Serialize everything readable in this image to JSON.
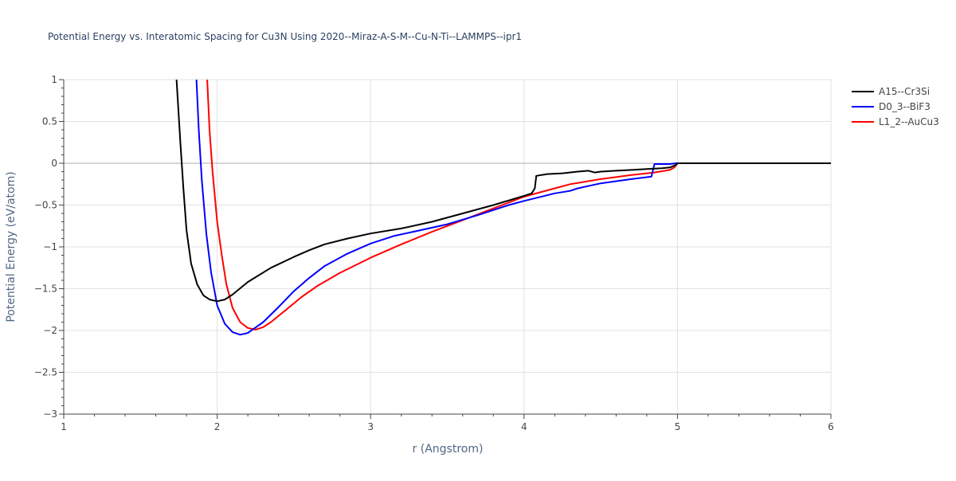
{
  "chart_data": {
    "type": "line",
    "title": "Potential Energy vs. Interatomic Spacing for Cu3N Using 2020--Miraz-A-S-M--Cu-N-Ti--LAMMPS--ipr1",
    "xlabel": "r (Angstrom)",
    "ylabel": "Potential Energy (eV/atom)",
    "xlim": [
      1,
      6
    ],
    "ylim": [
      -3,
      1
    ],
    "xticks": [
      "1",
      "2",
      "3",
      "4",
      "5",
      "6"
    ],
    "yticks": [
      "1",
      "0.5",
      "0",
      "−0.5",
      "−1",
      "−1.5",
      "−2",
      "−2.5",
      "−3"
    ],
    "grid": true,
    "legend_position": "top-right",
    "series": [
      {
        "name": "A15--Cr3Si",
        "color": "#000000",
        "x": [
          1.735,
          1.76,
          1.78,
          1.8,
          1.83,
          1.87,
          1.91,
          1.95,
          2.0,
          2.05,
          2.1,
          2.2,
          2.35,
          2.5,
          2.6,
          2.7,
          2.85,
          3.0,
          3.2,
          3.4,
          3.6,
          3.8,
          4.0,
          4.05,
          4.07,
          4.08,
          4.15,
          4.25,
          4.35,
          4.42,
          4.46,
          4.5,
          4.6,
          4.7,
          4.8,
          4.9,
          4.95,
          4.99,
          5.0,
          6.0
        ],
        "y": [
          1.0,
          0.25,
          -0.3,
          -0.8,
          -1.2,
          -1.45,
          -1.58,
          -1.63,
          -1.65,
          -1.63,
          -1.57,
          -1.42,
          -1.25,
          -1.12,
          -1.04,
          -0.97,
          -0.9,
          -0.84,
          -0.78,
          -0.7,
          -0.6,
          -0.5,
          -0.39,
          -0.36,
          -0.3,
          -0.15,
          -0.13,
          -0.12,
          -0.1,
          -0.09,
          -0.11,
          -0.1,
          -0.09,
          -0.08,
          -0.07,
          -0.06,
          -0.05,
          -0.02,
          0.0,
          0.0
        ]
      },
      {
        "name": "D0_3--BiF3",
        "color": "#0000ff",
        "x": [
          1.865,
          1.88,
          1.9,
          1.93,
          1.96,
          2.0,
          2.05,
          2.1,
          2.15,
          2.2,
          2.3,
          2.4,
          2.5,
          2.6,
          2.7,
          2.85,
          3.0,
          3.15,
          3.3,
          3.5,
          3.7,
          3.9,
          4.0,
          4.2,
          4.3,
          4.35,
          4.5,
          4.7,
          4.83,
          4.85,
          4.9,
          4.95,
          4.99,
          5.0,
          6.0
        ],
        "y": [
          1.0,
          0.4,
          -0.2,
          -0.85,
          -1.3,
          -1.7,
          -1.92,
          -2.02,
          -2.05,
          -2.03,
          -1.9,
          -1.72,
          -1.53,
          -1.37,
          -1.23,
          -1.08,
          -0.96,
          -0.87,
          -0.81,
          -0.73,
          -0.62,
          -0.5,
          -0.45,
          -0.36,
          -0.33,
          -0.3,
          -0.24,
          -0.19,
          -0.16,
          -0.01,
          -0.01,
          -0.01,
          0.0,
          0.0,
          0.0
        ]
      },
      {
        "name": "L1_2--AuCu3",
        "color": "#ff0000",
        "x": [
          1.935,
          1.95,
          1.97,
          2.0,
          2.03,
          2.06,
          2.1,
          2.15,
          2.2,
          2.25,
          2.3,
          2.35,
          2.45,
          2.55,
          2.65,
          2.8,
          3.0,
          3.2,
          3.4,
          3.6,
          3.8,
          4.0,
          4.2,
          4.3,
          4.5,
          4.7,
          4.85,
          4.95,
          4.98,
          5.0,
          6.0
        ],
        "y": [
          1.0,
          0.4,
          -0.1,
          -0.7,
          -1.1,
          -1.45,
          -1.73,
          -1.9,
          -1.97,
          -1.99,
          -1.96,
          -1.9,
          -1.75,
          -1.6,
          -1.47,
          -1.31,
          -1.13,
          -0.97,
          -0.82,
          -0.68,
          -0.54,
          -0.4,
          -0.3,
          -0.25,
          -0.19,
          -0.14,
          -0.11,
          -0.08,
          -0.05,
          0.0,
          0.0
        ]
      }
    ]
  }
}
